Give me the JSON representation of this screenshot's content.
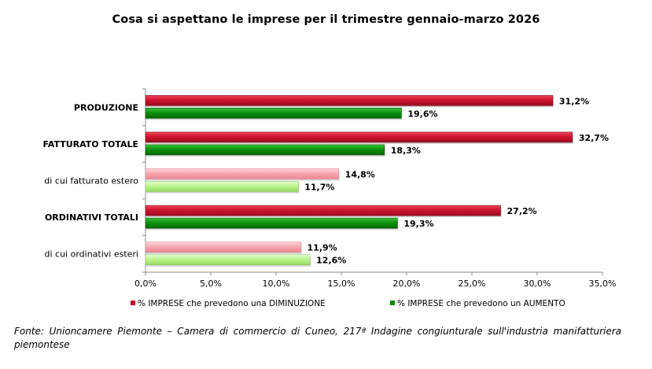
{
  "chart_data": {
    "type": "bar",
    "orientation": "horizontal",
    "title": "Cosa si aspettano le imprese per il trimestre gennaio-marzo 2026",
    "categories": [
      {
        "label": "PRODUZIONE",
        "bold": true
      },
      {
        "label": "FATTURATO TOTALE",
        "bold": true
      },
      {
        "label": "di cui fatturato estero",
        "bold": false
      },
      {
        "label": "ORDINATIVI TOTALI",
        "bold": true
      },
      {
        "label": "di cui ordinativi esteri",
        "bold": false
      }
    ],
    "series": [
      {
        "name": "% IMPRESE che prevedono una DIMINUZIONE",
        "values": [
          31.2,
          32.7,
          14.8,
          27.2,
          11.9
        ],
        "value_labels": [
          "31,2%",
          "32,7%",
          "14,8%",
          "27,2%",
          "11,9%"
        ],
        "color": "#c8102e",
        "light_color": "#f7a3ad"
      },
      {
        "name": "% IMPRESE che prevedono un AUMENTO",
        "values": [
          19.6,
          18.3,
          11.7,
          19.3,
          12.6
        ],
        "value_labels": [
          "19,6%",
          "18,3%",
          "11,7%",
          "19,3%",
          "12,6%"
        ],
        "color": "#0a8a0a",
        "light_color": "#b9f28a"
      }
    ],
    "xlim": [
      0,
      35
    ],
    "x_ticks": [
      0,
      5,
      10,
      15,
      20,
      25,
      30,
      35
    ],
    "x_tick_labels": [
      "0,0%",
      "5,0%",
      "10,0%",
      "15,0%",
      "20,0%",
      "25,0%",
      "30,0%",
      "35,0%"
    ],
    "grid": false,
    "legend_position": "bottom"
  },
  "source_note": "Fonte: Unioncamere Piemonte – Camera di commercio di Cuneo, 217ª Indagine congiunturale sull'industria manifatturiera piemontese"
}
